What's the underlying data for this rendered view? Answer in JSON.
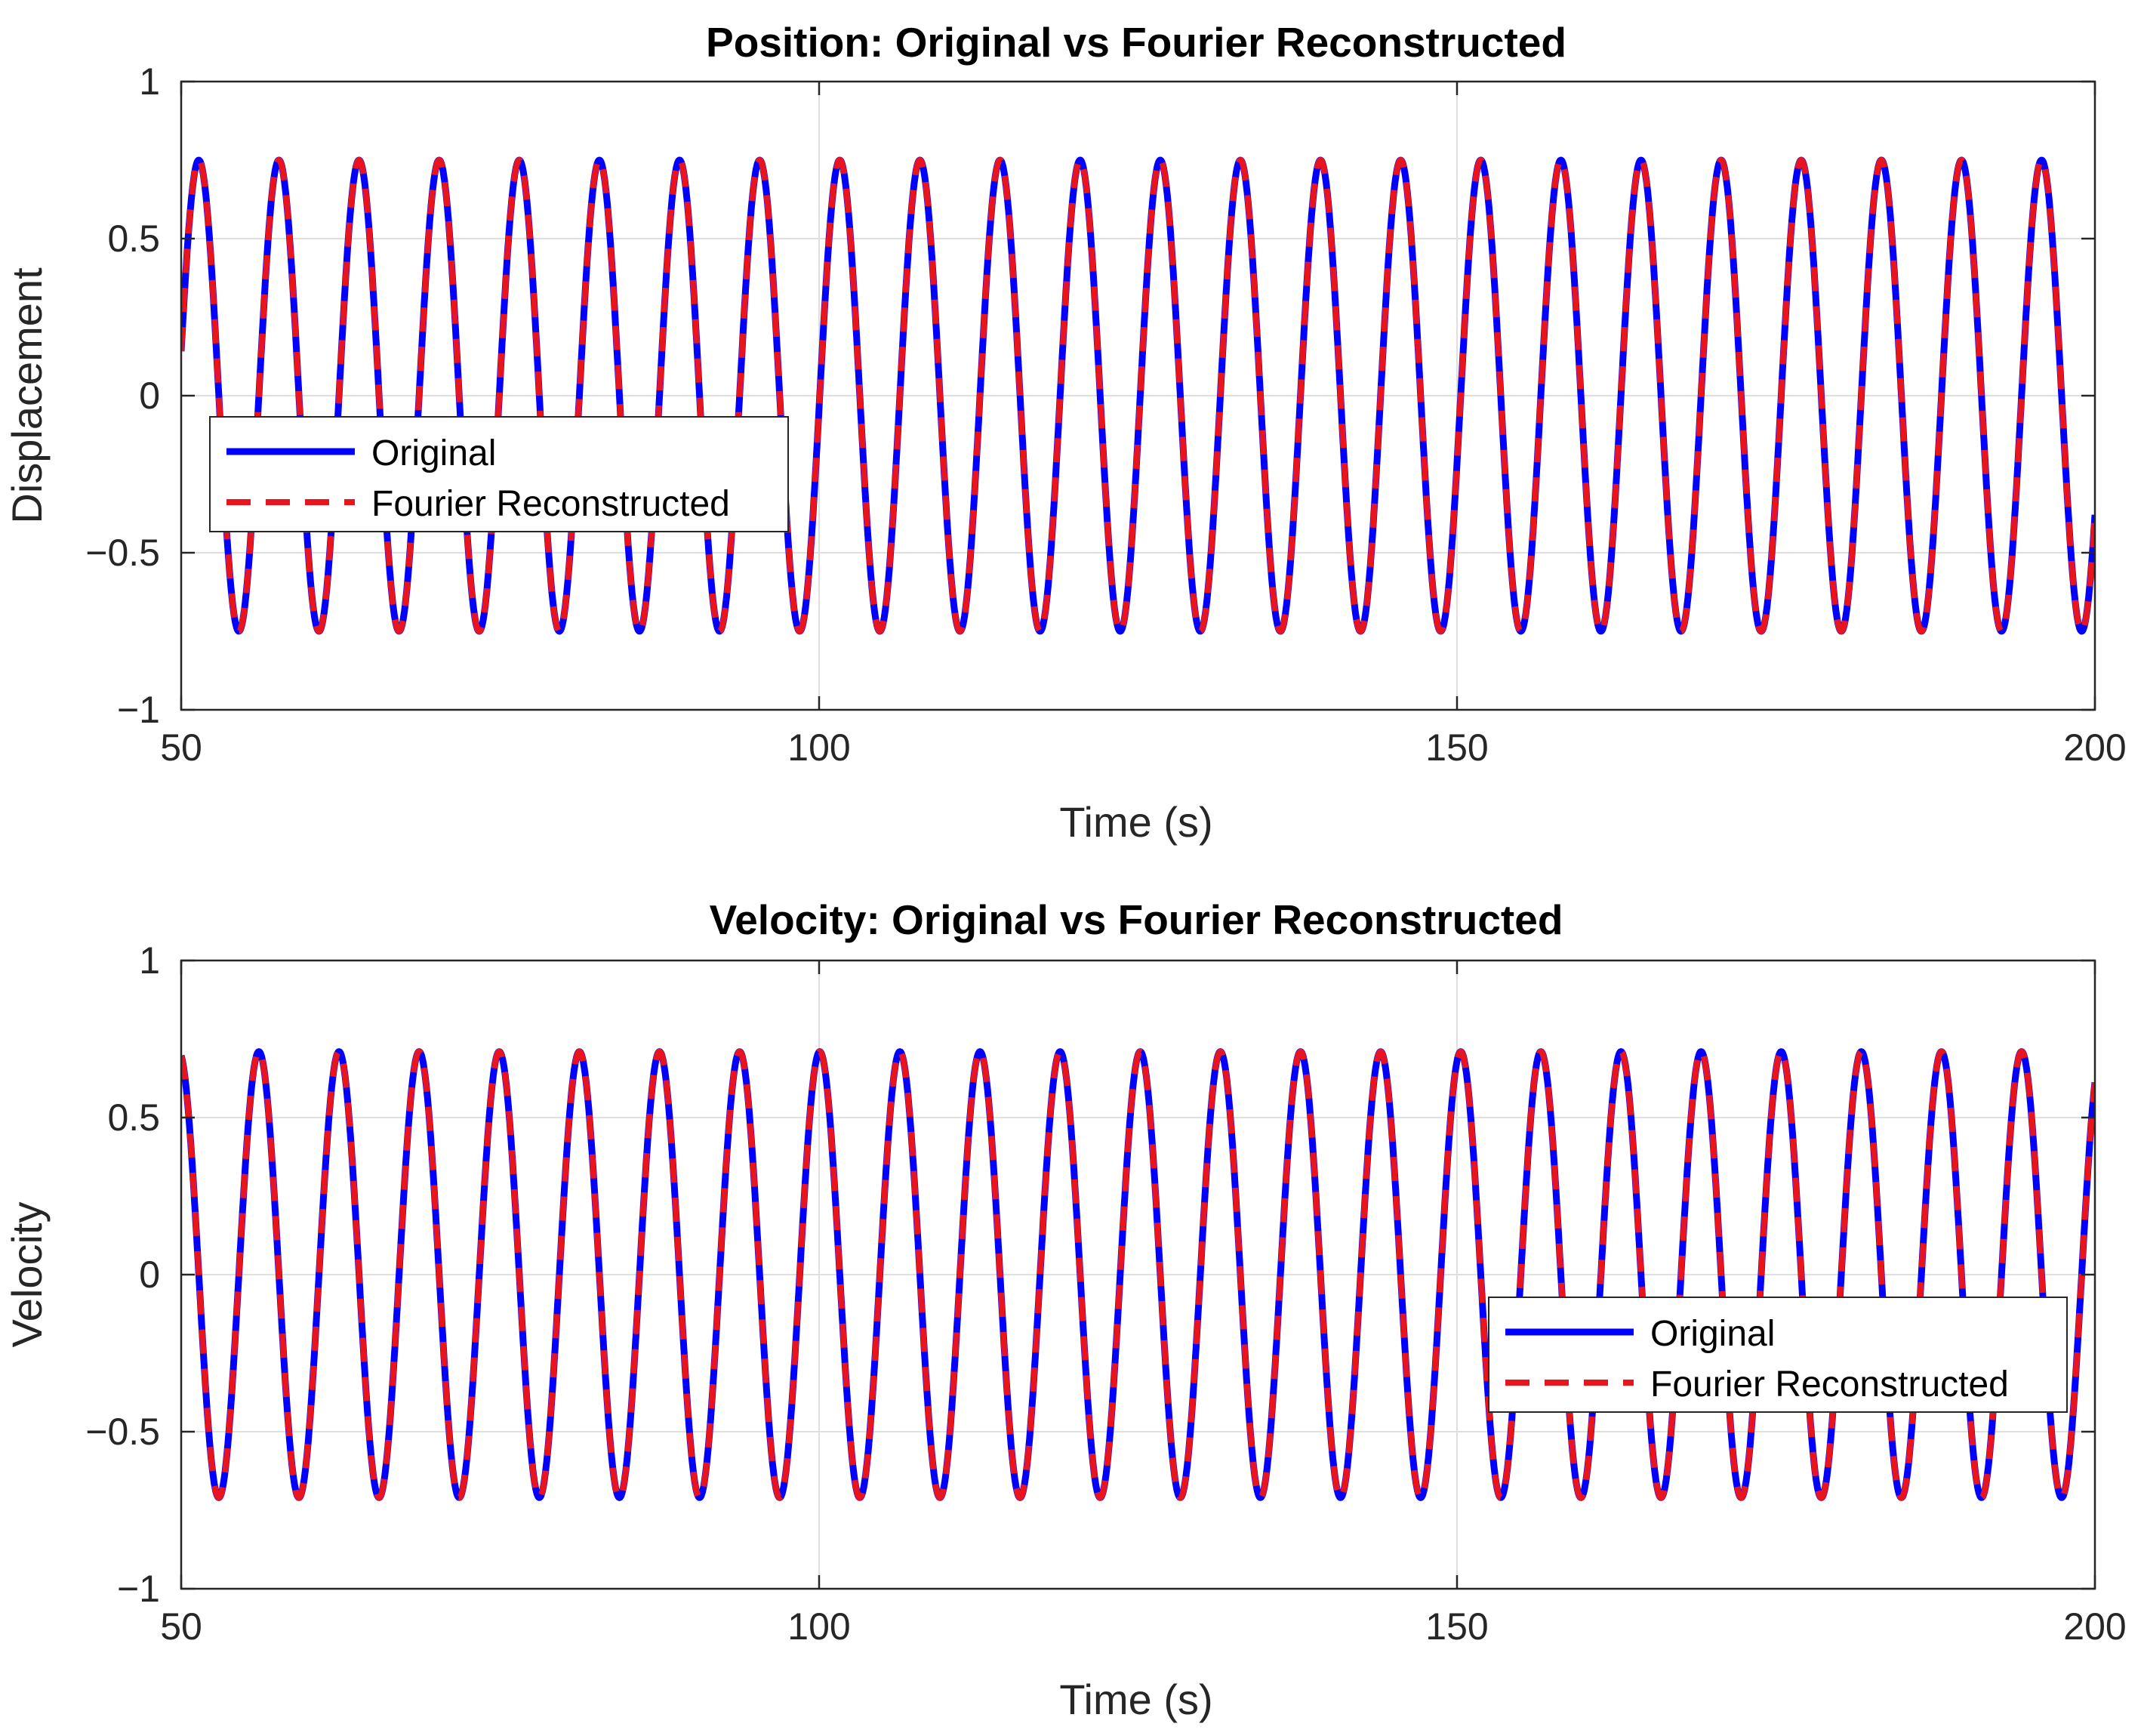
{
  "chart_data": [
    {
      "type": "line",
      "title": "Position: Original vs Fourier Reconstructed",
      "xlabel": "Time (s)",
      "ylabel": "Displacement",
      "xlim": [
        50,
        200
      ],
      "ylim": [
        -1,
        1
      ],
      "xticks": [
        50,
        100,
        150,
        200
      ],
      "yticks": [
        -1,
        -0.5,
        0,
        0.5,
        1
      ],
      "xtick_labels": [
        "50",
        "100",
        "150",
        "200"
      ],
      "ytick_labels": [
        "−1",
        "−0.5",
        "0",
        "0.5",
        "1"
      ],
      "grid": true,
      "legend_location": "middle-left",
      "signal": {
        "function": "sin",
        "amplitude": 0.75,
        "period": 6.28,
        "phase_at_xmin": 0.19
      },
      "series": [
        {
          "name": "Original",
          "color": "#0000ff",
          "style": "solid"
        },
        {
          "name": "Fourier Reconstructed",
          "color": "#e8141e",
          "style": "dashed"
        }
      ]
    },
    {
      "type": "line",
      "title": "Velocity: Original vs Fourier Reconstructed",
      "xlabel": "Time (s)",
      "ylabel": "Velocity",
      "xlim": [
        50,
        200
      ],
      "ylim": [
        -1,
        1
      ],
      "xticks": [
        50,
        100,
        150,
        200
      ],
      "yticks": [
        -1,
        -0.5,
        0,
        0.5,
        1
      ],
      "xtick_labels": [
        "50",
        "100",
        "150",
        "200"
      ],
      "ytick_labels": [
        "−1",
        "−0.5",
        "0",
        "0.5",
        "1"
      ],
      "grid": true,
      "legend_location": "middle-right",
      "signal": {
        "function": "sin",
        "amplitude": 0.71,
        "period": 6.28,
        "phase_at_xmin": 1.76
      },
      "series": [
        {
          "name": "Original",
          "color": "#0000ff",
          "style": "solid"
        },
        {
          "name": "Fourier Reconstructed",
          "color": "#e8141e",
          "style": "dashed"
        }
      ]
    }
  ]
}
